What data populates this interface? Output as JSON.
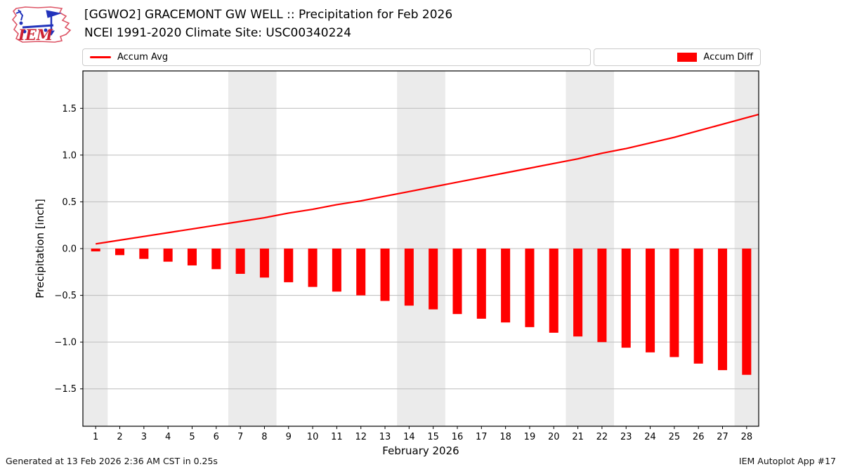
{
  "header": {
    "title": "[GGWO2] GRACEMONT GW WELL :: Precipitation for Feb 2026",
    "subtitle": "NCEI 1991-2020 Climate Site: USC00340224",
    "logo_text": "IEM"
  },
  "legend": {
    "accum_avg_label": "Accum Avg",
    "accum_diff_label": "Accum Diff",
    "line_color": "#ff0000",
    "patch_color": "#ff0000"
  },
  "chart_data": {
    "type": "line_and_bar",
    "xlabel": "February 2026",
    "ylabel": "Precipitation [inch]",
    "days": [
      1,
      2,
      3,
      4,
      5,
      6,
      7,
      8,
      9,
      10,
      11,
      12,
      13,
      14,
      15,
      16,
      17,
      18,
      19,
      20,
      21,
      22,
      23,
      24,
      25,
      26,
      27,
      28
    ],
    "xtick_labels": [
      "1",
      "2",
      "3",
      "4",
      "5",
      "6",
      "7",
      "8",
      "9",
      "10",
      "11",
      "12",
      "13",
      "14",
      "15",
      "16",
      "17",
      "18",
      "19",
      "20",
      "21",
      "22",
      "23",
      "24",
      "25",
      "26",
      "27",
      "28"
    ],
    "series": [
      {
        "name": "Accum Avg",
        "type": "line",
        "color": "#ff0000",
        "values": [
          0.05,
          0.09,
          0.13,
          0.17,
          0.21,
          0.25,
          0.29,
          0.33,
          0.38,
          0.42,
          0.47,
          0.51,
          0.56,
          0.61,
          0.66,
          0.71,
          0.76,
          0.81,
          0.86,
          0.91,
          0.96,
          1.02,
          1.07,
          1.13,
          1.19,
          1.26,
          1.33,
          1.4
        ]
      },
      {
        "name": "Accum Diff",
        "type": "bar",
        "color": "#ff0000",
        "values": [
          -0.03,
          -0.07,
          -0.11,
          -0.14,
          -0.18,
          -0.22,
          -0.27,
          -0.31,
          -0.36,
          -0.41,
          -0.46,
          -0.5,
          -0.56,
          -0.61,
          -0.65,
          -0.7,
          -0.75,
          -0.79,
          -0.84,
          -0.9,
          -0.94,
          -1.0,
          -1.06,
          -1.11,
          -1.16,
          -1.23,
          -1.3,
          -1.35
        ]
      }
    ],
    "xlim": [
      0.47,
      28.5
    ],
    "ylim": [
      -1.9,
      1.9
    ],
    "yticks": [
      1.5,
      1.0,
      0.5,
      0.0,
      -0.5,
      -1.0,
      -1.5
    ],
    "ytick_labels": [
      "1.5",
      "1.0",
      "0.5",
      "0.0",
      "−0.5",
      "−1.0",
      "−1.5"
    ],
    "grid": "horizontal",
    "legend_position": "top",
    "weekend_bands": [
      [
        0.47,
        1.5
      ],
      [
        6.5,
        8.5
      ],
      [
        13.5,
        15.5
      ],
      [
        20.5,
        22.5
      ],
      [
        27.5,
        28.5
      ]
    ],
    "band_color": "#ebebeb",
    "grid_color": "#bcbcbc",
    "bar_width": 0.38,
    "line_extends_to_xlim_max": true
  },
  "footer": {
    "generated": "Generated at 13 Feb 2026 2:36 AM CST in 0.25s",
    "app": "IEM Autoplot App #17"
  }
}
